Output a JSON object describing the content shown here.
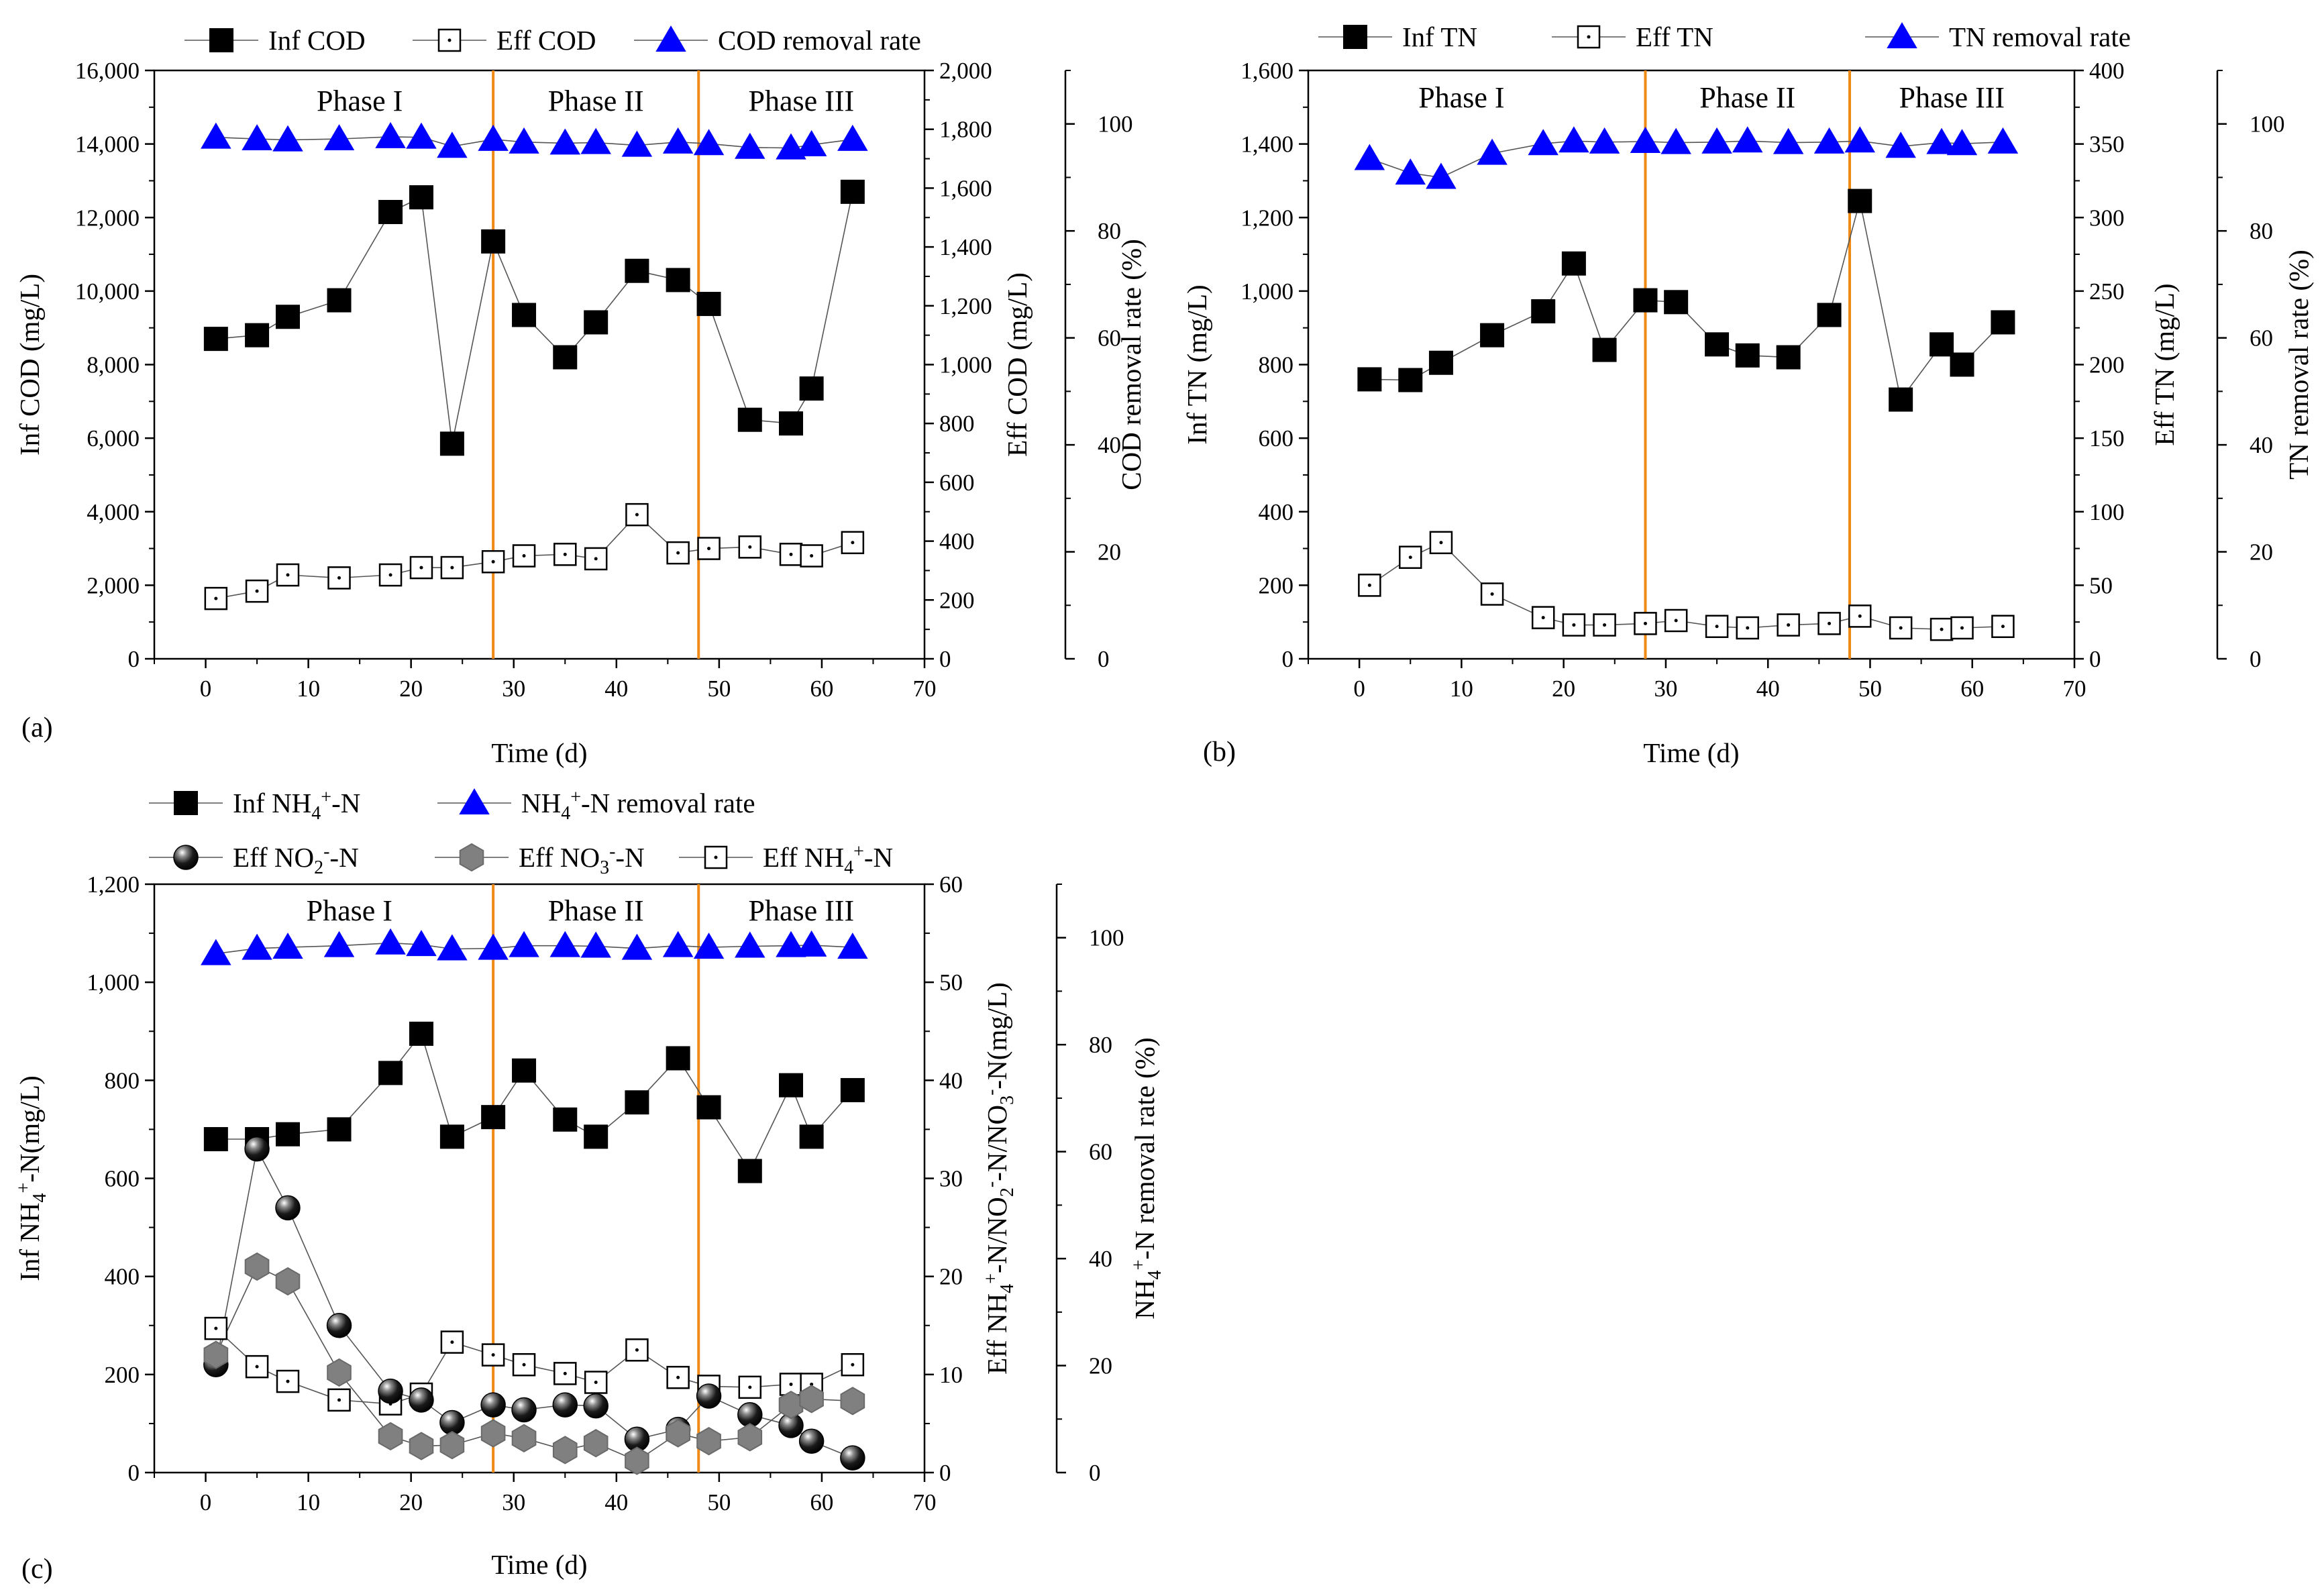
{
  "figure_labels": [
    "(a)",
    "(b)",
    "(c)"
  ],
  "chart_data": [
    {
      "id": "a",
      "type": "scatter",
      "panel_label": "(a)",
      "xlabel": "Time (d)",
      "xlim": [
        -5,
        70
      ],
      "xticks": [
        0,
        10,
        20,
        30,
        40,
        50,
        60,
        70
      ],
      "phase_lines_x": [
        28,
        48
      ],
      "phase_labels": [
        {
          "text": "Phase I",
          "x": 15
        },
        {
          "text": "Phase II",
          "x": 38
        },
        {
          "text": "Phase III",
          "x": 58
        }
      ],
      "axes": {
        "left": {
          "label": "Inf COD (mg/L)",
          "ylim": [
            0,
            16000
          ],
          "ticks": [
            "0",
            "2,000",
            "4,000",
            "6,000",
            "8,000",
            "10,000",
            "12,000",
            "14,000",
            "16,000"
          ]
        },
        "right1": {
          "label": "Eff COD (mg/L)",
          "ylim": [
            0,
            2000
          ],
          "ticks": [
            "0",
            "200",
            "400",
            "600",
            "800",
            "1,000",
            "1,200",
            "1,400",
            "1,600",
            "1,800",
            "2,000"
          ]
        },
        "right2": {
          "label": "COD removal rate (%)",
          "ylim": [
            0,
            110
          ],
          "ticks": [
            "0",
            "20",
            "40",
            "60",
            "80",
            "100"
          ]
        }
      },
      "series": [
        {
          "name": "Inf COD",
          "axis": "left",
          "marker": "square-filled",
          "x": [
            1,
            5,
            8,
            13,
            18,
            21,
            24,
            28,
            31,
            35,
            38,
            42,
            46,
            49,
            53,
            57,
            59,
            63
          ],
          "y": [
            8700,
            8800,
            9300,
            9750,
            12150,
            12550,
            5850,
            11350,
            9350,
            8200,
            9150,
            10550,
            10300,
            9650,
            6500,
            6400,
            7350,
            12700
          ]
        },
        {
          "name": "Eff COD",
          "axis": "right1",
          "marker": "square-open",
          "x": [
            1,
            5,
            8,
            13,
            18,
            21,
            24,
            28,
            31,
            35,
            38,
            42,
            46,
            49,
            53,
            57,
            59,
            63
          ],
          "y": [
            205,
            230,
            285,
            275,
            285,
            310,
            310,
            330,
            350,
            355,
            340,
            490,
            360,
            375,
            380,
            355,
            350,
            395
          ]
        },
        {
          "name": "COD removal rate",
          "axis": "right2",
          "marker": "triangle-blue",
          "x": [
            1,
            5,
            8,
            13,
            18,
            21,
            24,
            28,
            31,
            35,
            38,
            42,
            46,
            49,
            53,
            57,
            59,
            63
          ],
          "y": [
            97.5,
            97.2,
            97.0,
            97.2,
            97.6,
            97.5,
            95.8,
            97.1,
            96.6,
            96.4,
            96.5,
            96.0,
            96.6,
            96.3,
            95.6,
            95.5,
            96.1,
            97.1
          ]
        }
      ],
      "legend": [
        "Inf COD",
        "Eff COD",
        "COD removal rate"
      ]
    },
    {
      "id": "b",
      "type": "scatter",
      "panel_label": "(b)",
      "xlabel": "Time (d)",
      "xlim": [
        -5,
        70
      ],
      "xticks": [
        0,
        10,
        20,
        30,
        40,
        50,
        60,
        70
      ],
      "phase_lines_x": [
        28,
        48
      ],
      "phase_labels": [
        {
          "text": "Phase I",
          "x": 10
        },
        {
          "text": "Phase II",
          "x": 38
        },
        {
          "text": "Phase III",
          "x": 58
        }
      ],
      "axes": {
        "left": {
          "label": "Inf TN (mg/L)",
          "ylim": [
            0,
            1600
          ],
          "ticks": [
            "0",
            "200",
            "400",
            "600",
            "800",
            "1,000",
            "1,200",
            "1,400",
            "1,600"
          ]
        },
        "right1": {
          "label": "Eff TN (mg/L)",
          "ylim": [
            0,
            400
          ],
          "ticks": [
            "0",
            "50",
            "100",
            "150",
            "200",
            "250",
            "300",
            "350",
            "400"
          ]
        },
        "right2": {
          "label": "TN removal rate (%)",
          "ylim": [
            0,
            110
          ],
          "ticks": [
            "0",
            "20",
            "40",
            "60",
            "80",
            "100"
          ]
        }
      },
      "series": [
        {
          "name": "Inf TN",
          "axis": "left",
          "marker": "square-filled",
          "x": [
            1,
            5,
            8,
            13,
            18,
            21,
            24,
            28,
            31,
            35,
            38,
            42,
            46,
            49,
            53,
            57,
            59,
            63
          ],
          "y": [
            760,
            758,
            805,
            880,
            945,
            1075,
            840,
            975,
            970,
            855,
            825,
            820,
            935,
            1245,
            705,
            855,
            800,
            915
          ]
        },
        {
          "name": "Eff TN",
          "axis": "right1",
          "marker": "square-open",
          "x": [
            1,
            5,
            8,
            13,
            18,
            21,
            24,
            28,
            31,
            35,
            38,
            42,
            46,
            49,
            53,
            57,
            59,
            63
          ],
          "y": [
            50,
            69,
            79,
            44,
            28,
            23,
            23,
            24,
            26,
            22,
            21,
            23,
            24,
            29,
            21,
            20,
            21,
            22
          ]
        },
        {
          "name": "TN removal rate",
          "axis": "right2",
          "marker": "triangle-blue",
          "x": [
            1,
            5,
            8,
            13,
            18,
            21,
            24,
            28,
            31,
            35,
            38,
            42,
            46,
            49,
            53,
            57,
            59,
            63
          ],
          "y": [
            93.5,
            90.8,
            90.0,
            94.5,
            96.3,
            96.8,
            96.6,
            96.7,
            96.5,
            96.6,
            96.8,
            96.5,
            96.6,
            96.8,
            95.8,
            96.5,
            96.3,
            96.6
          ]
        }
      ],
      "legend": [
        "Inf TN",
        "Eff TN",
        "TN removal rate"
      ]
    },
    {
      "id": "c",
      "type": "scatter",
      "panel_label": "(c)",
      "xlabel": "Time (d)",
      "xlim": [
        -5,
        70
      ],
      "xticks": [
        0,
        10,
        20,
        30,
        40,
        50,
        60,
        70
      ],
      "phase_lines_x": [
        28,
        48
      ],
      "phase_labels": [
        {
          "text": "Phase I",
          "x": 14
        },
        {
          "text": "Phase II",
          "x": 38
        },
        {
          "text": "Phase III",
          "x": 58
        }
      ],
      "axes": {
        "left": {
          "label": "Inf NH4+-N(mg/L)",
          "ylim": [
            0,
            1200
          ],
          "ticks": [
            "0",
            "200",
            "400",
            "600",
            "800",
            "1,000",
            "1,200"
          ]
        },
        "right1": {
          "label": "Eff NH4+-N/NO2--N/NO3--N(mg/L)",
          "ylim": [
            0,
            60
          ],
          "ticks": [
            "0",
            "10",
            "20",
            "30",
            "40",
            "50",
            "60"
          ]
        },
        "right2": {
          "label": "NH4+-N removal rate (%)",
          "ylim": [
            0,
            110
          ],
          "ticks": [
            "0",
            "20",
            "40",
            "60",
            "80",
            "100"
          ]
        }
      },
      "series": [
        {
          "name": "Inf NH4+-N",
          "axis": "left",
          "marker": "square-filled",
          "x": [
            1,
            5,
            8,
            13,
            18,
            21,
            24,
            28,
            31,
            35,
            38,
            42,
            46,
            49,
            53,
            57,
            59,
            63
          ],
          "y": [
            680,
            680,
            690,
            700,
            815,
            895,
            685,
            725,
            820,
            720,
            685,
            755,
            845,
            745,
            615,
            790,
            685,
            780
          ]
        },
        {
          "name": "Eff NH4+-N",
          "axis": "right1",
          "marker": "square-open",
          "x": [
            1,
            5,
            8,
            13,
            18,
            21,
            24,
            28,
            31,
            35,
            38,
            42,
            46,
            49,
            53,
            57,
            59,
            63
          ],
          "y": [
            14.7,
            10.8,
            9.3,
            7.4,
            7.0,
            8.0,
            13.3,
            12.0,
            11.0,
            10.1,
            9.2,
            12.5,
            9.7,
            8.8,
            8.7,
            9.0,
            9.0,
            11.0
          ]
        },
        {
          "name": "Eff NO2--N",
          "axis": "right1",
          "marker": "sphere-black",
          "x": [
            1,
            5,
            8,
            13,
            18,
            21,
            24,
            28,
            31,
            35,
            38,
            42,
            46,
            49,
            53,
            57,
            59,
            63
          ],
          "y": [
            11.0,
            33.0,
            27.0,
            15.0,
            8.3,
            7.4,
            5.1,
            6.9,
            6.4,
            6.9,
            6.8,
            3.4,
            4.4,
            7.8,
            5.9,
            4.8,
            3.2,
            1.5
          ]
        },
        {
          "name": "Eff NO3--N",
          "axis": "right1",
          "marker": "hexagon-gray",
          "x": [
            1,
            5,
            8,
            13,
            18,
            21,
            24,
            28,
            31,
            35,
            38,
            42,
            46,
            49,
            53,
            57,
            59,
            63
          ],
          "y": [
            12.0,
            21.0,
            19.5,
            10.2,
            3.7,
            2.7,
            2.8,
            4.0,
            3.5,
            2.3,
            3.0,
            1.2,
            4.0,
            3.2,
            3.6,
            6.9,
            7.5,
            7.3
          ]
        },
        {
          "name": "NH4+-N removal rate",
          "axis": "right2",
          "marker": "triangle-blue",
          "x": [
            1,
            5,
            8,
            13,
            18,
            21,
            24,
            28,
            31,
            35,
            38,
            42,
            46,
            49,
            53,
            57,
            59,
            63
          ],
          "y": [
            97.0,
            98.0,
            98.2,
            98.5,
            99.0,
            98.7,
            97.9,
            98.0,
            98.5,
            98.5,
            98.4,
            98.0,
            98.5,
            98.2,
            98.4,
            98.5,
            98.6,
            98.2
          ]
        }
      ],
      "legend": [
        "Inf NH4+-N",
        "NH4+-N removal rate",
        "Eff NH4+-N",
        "Eff NO2--N",
        "Eff NO3--N"
      ]
    }
  ]
}
